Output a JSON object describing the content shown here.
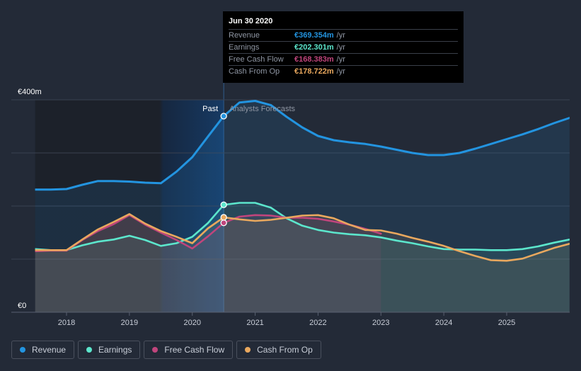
{
  "chart_data": {
    "type": "line",
    "currency": "€",
    "x_start": 2017.5,
    "x_end": 2026.0,
    "divider_x": 2020.5,
    "forecast_end_x": 2023.0,
    "ylim": [
      0,
      400
    ],
    "y_tick_labels": [
      {
        "value": 400,
        "label": "€400m"
      },
      {
        "value": 0,
        "label": "€0"
      }
    ],
    "x_tick_labels": [
      "2018",
      "2019",
      "2020",
      "2021",
      "2022",
      "2023",
      "2024",
      "2025"
    ],
    "x_tick_values": [
      2018,
      2019,
      2020,
      2021,
      2022,
      2023,
      2024,
      2025
    ],
    "past_label": "Past",
    "forecast_label": "Analysts Forecasts",
    "series": [
      {
        "name": "Revenue",
        "key": "revenue",
        "color": "#2394e0",
        "points": [
          [
            2017.5,
            231
          ],
          [
            2017.75,
            231
          ],
          [
            2018.0,
            232
          ],
          [
            2018.25,
            240
          ],
          [
            2018.5,
            247
          ],
          [
            2018.75,
            247
          ],
          [
            2019.0,
            246
          ],
          [
            2019.25,
            244
          ],
          [
            2019.5,
            243
          ],
          [
            2019.75,
            265
          ],
          [
            2020.0,
            292
          ],
          [
            2020.25,
            331
          ],
          [
            2020.5,
            369.354
          ],
          [
            2020.75,
            395
          ],
          [
            2021.0,
            398
          ],
          [
            2021.25,
            390
          ],
          [
            2021.5,
            368
          ],
          [
            2021.75,
            348
          ],
          [
            2022.0,
            332
          ],
          [
            2022.25,
            324
          ],
          [
            2022.5,
            320
          ],
          [
            2022.75,
            317
          ],
          [
            2023.0,
            312
          ],
          [
            2023.25,
            306
          ],
          [
            2023.5,
            300
          ],
          [
            2023.75,
            296
          ],
          [
            2024.0,
            296
          ],
          [
            2024.25,
            300
          ],
          [
            2024.5,
            308
          ],
          [
            2024.75,
            317
          ],
          [
            2025.0,
            326
          ],
          [
            2025.25,
            335
          ],
          [
            2025.5,
            345
          ],
          [
            2025.75,
            356
          ],
          [
            2026.0,
            366
          ]
        ]
      },
      {
        "name": "Earnings",
        "key": "earnings",
        "color": "#5ce6cc",
        "points": [
          [
            2017.5,
            119
          ],
          [
            2017.75,
            117
          ],
          [
            2018.0,
            117
          ],
          [
            2018.25,
            126
          ],
          [
            2018.5,
            133
          ],
          [
            2018.75,
            137
          ],
          [
            2019.0,
            144
          ],
          [
            2019.25,
            136
          ],
          [
            2019.5,
            125
          ],
          [
            2019.75,
            130
          ],
          [
            2020.0,
            142
          ],
          [
            2020.25,
            168
          ],
          [
            2020.5,
            202.301
          ],
          [
            2020.75,
            206
          ],
          [
            2021.0,
            206
          ],
          [
            2021.25,
            197
          ],
          [
            2021.5,
            177
          ],
          [
            2021.75,
            163
          ],
          [
            2022.0,
            155
          ],
          [
            2022.25,
            150
          ],
          [
            2022.5,
            147
          ],
          [
            2022.75,
            145
          ],
          [
            2023.0,
            141
          ],
          [
            2023.25,
            135
          ],
          [
            2023.5,
            130
          ],
          [
            2023.75,
            124
          ],
          [
            2024.0,
            119
          ],
          [
            2024.25,
            118
          ],
          [
            2024.5,
            118
          ],
          [
            2024.75,
            117
          ],
          [
            2025.0,
            117
          ],
          [
            2025.25,
            119
          ],
          [
            2025.5,
            124
          ],
          [
            2025.75,
            131
          ],
          [
            2026.0,
            137
          ]
        ]
      },
      {
        "name": "Free Cash Flow",
        "key": "fcf",
        "color": "#c0457c",
        "points": [
          [
            2017.5,
            115
          ],
          [
            2017.75,
            116
          ],
          [
            2018.0,
            116
          ],
          [
            2018.25,
            136
          ],
          [
            2018.5,
            153
          ],
          [
            2018.75,
            166
          ],
          [
            2019.0,
            183
          ],
          [
            2019.25,
            165
          ],
          [
            2019.5,
            150
          ],
          [
            2019.75,
            136
          ],
          [
            2020.0,
            120
          ],
          [
            2020.25,
            143
          ],
          [
            2020.5,
            168.383
          ],
          [
            2020.75,
            180
          ],
          [
            2021.0,
            183
          ],
          [
            2021.25,
            182
          ],
          [
            2021.5,
            178
          ],
          [
            2021.75,
            178
          ],
          [
            2022.0,
            176
          ],
          [
            2022.25,
            171
          ],
          [
            2022.5,
            165
          ],
          [
            2022.75,
            157
          ],
          [
            2023.0,
            148
          ]
        ]
      },
      {
        "name": "Cash From Op",
        "key": "cfo",
        "color": "#e9a85e",
        "points": [
          [
            2017.5,
            117
          ],
          [
            2017.75,
            117
          ],
          [
            2018.0,
            117
          ],
          [
            2018.25,
            137
          ],
          [
            2018.5,
            156
          ],
          [
            2018.75,
            170
          ],
          [
            2019.0,
            185
          ],
          [
            2019.25,
            167
          ],
          [
            2019.5,
            153
          ],
          [
            2019.75,
            142
          ],
          [
            2020.0,
            130
          ],
          [
            2020.25,
            158
          ],
          [
            2020.5,
            178.722
          ],
          [
            2020.75,
            175
          ],
          [
            2021.0,
            172
          ],
          [
            2021.25,
            174
          ],
          [
            2021.5,
            178
          ],
          [
            2021.75,
            182
          ],
          [
            2022.0,
            183
          ],
          [
            2022.25,
            177
          ],
          [
            2022.5,
            165
          ],
          [
            2022.75,
            155
          ],
          [
            2023.0,
            154
          ],
          [
            2023.25,
            148
          ],
          [
            2023.5,
            140
          ],
          [
            2023.75,
            133
          ],
          [
            2024.0,
            125
          ],
          [
            2024.25,
            115
          ],
          [
            2024.5,
            106
          ],
          [
            2024.75,
            98
          ],
          [
            2025.0,
            97
          ],
          [
            2025.25,
            101
          ],
          [
            2025.5,
            111
          ],
          [
            2025.75,
            121
          ],
          [
            2026.0,
            129
          ]
        ]
      }
    ],
    "highlight": {
      "x": 2020.5,
      "values": {
        "revenue": 369.354,
        "earnings": 202.301,
        "fcf": 168.383,
        "cfo": 178.722
      }
    }
  },
  "tooltip": {
    "date": "Jun 30 2020",
    "unit": "/yr",
    "rows": [
      {
        "label": "Revenue",
        "value": "€369.354m",
        "color": "#2394e0"
      },
      {
        "label": "Earnings",
        "value": "€202.301m",
        "color": "#5ce6cc"
      },
      {
        "label": "Free Cash Flow",
        "value": "€168.383m",
        "color": "#c0457c"
      },
      {
        "label": "Cash From Op",
        "value": "€178.722m",
        "color": "#e9a85e"
      }
    ]
  },
  "legend": [
    {
      "label": "Revenue",
      "color": "#2394e0"
    },
    {
      "label": "Earnings",
      "color": "#5ce6cc"
    },
    {
      "label": "Free Cash Flow",
      "color": "#c0457c"
    },
    {
      "label": "Cash From Op",
      "color": "#e9a85e"
    }
  ]
}
